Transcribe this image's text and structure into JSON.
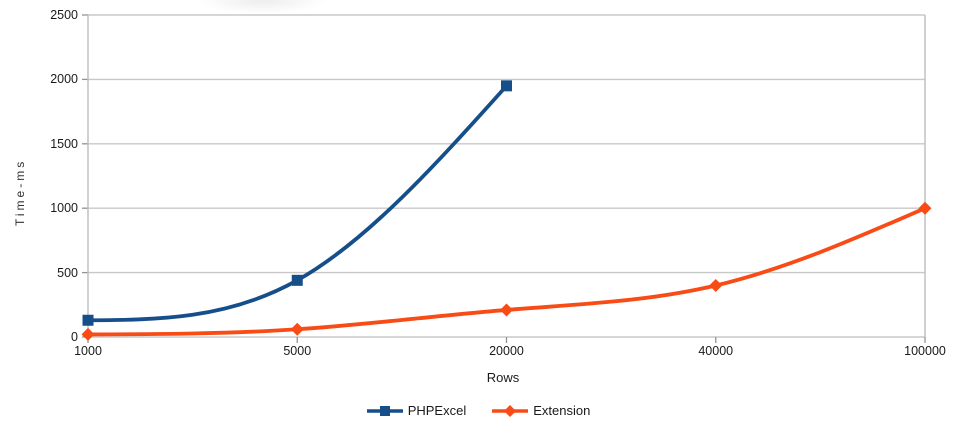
{
  "chart_data": {
    "type": "line",
    "categories": [
      "1000",
      "5000",
      "20000",
      "40000",
      "100000"
    ],
    "series": [
      {
        "name": "PHPExcel",
        "color": "#164e8a",
        "marker": "square",
        "values": [
          130,
          440,
          1950
        ]
      },
      {
        "name": "Extension",
        "color": "#f84b16",
        "marker": "diamond",
        "values": [
          20,
          60,
          210,
          400,
          1000
        ]
      }
    ],
    "xlabel": "Rows",
    "ylabel": "Time-ms",
    "ylim": [
      0,
      2500
    ],
    "yticks": [
      0,
      500,
      1000,
      1500,
      2000,
      2500
    ],
    "grid": "horizontal",
    "legend_position": "bottom",
    "line_style": "smooth-cubic-spline"
  },
  "style": {
    "background": "#ffffff",
    "gridline_color": "#c8c8c8",
    "border_color": "#bdbdbd",
    "tick_color": "#939393",
    "tick_label_color": "#1a1a1a",
    "axis_title_color": "#333333"
  }
}
